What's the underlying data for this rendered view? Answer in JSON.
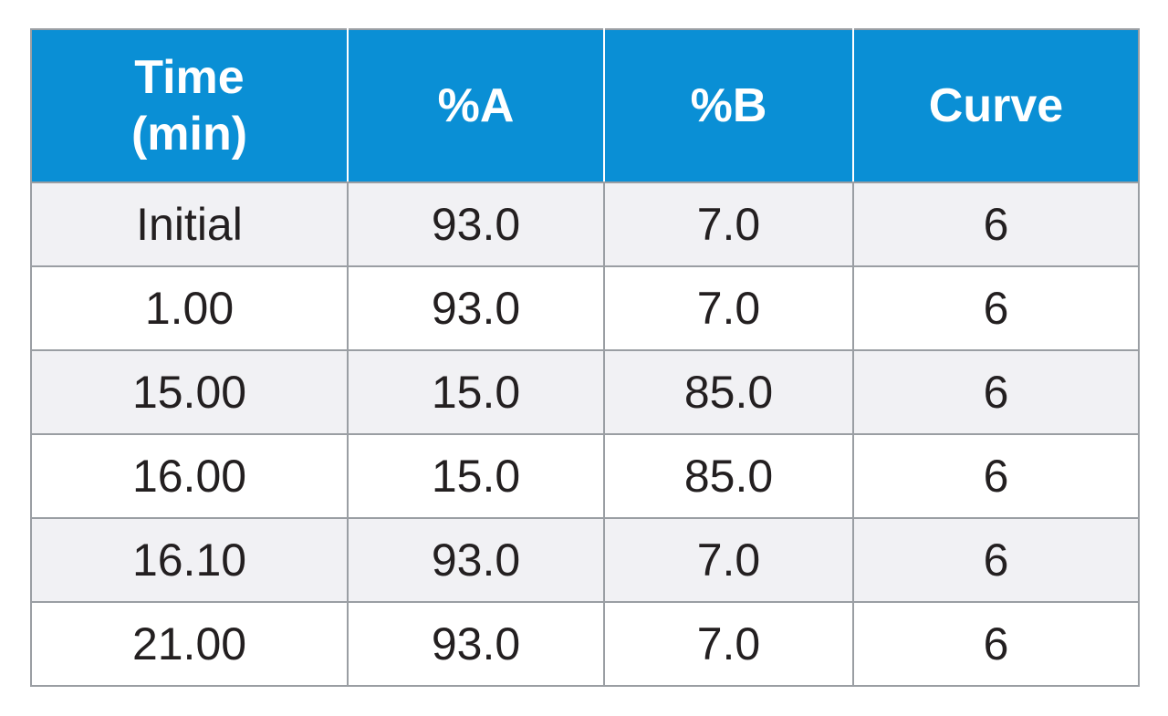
{
  "table": {
    "headers": {
      "time_line1": "Time",
      "time_line2": "(min)",
      "a": "%A",
      "b": "%B",
      "curve": "Curve"
    },
    "rows": [
      {
        "time": "Initial",
        "a": "93.0",
        "b": "7.0",
        "curve": "6"
      },
      {
        "time": "1.00",
        "a": "93.0",
        "b": "7.0",
        "curve": "6"
      },
      {
        "time": "15.00",
        "a": "15.0",
        "b": "85.0",
        "curve": "6"
      },
      {
        "time": "16.00",
        "a": "15.0",
        "b": "85.0",
        "curve": "6"
      },
      {
        "time": "16.10",
        "a": "93.0",
        "b": "7.0",
        "curve": "6"
      },
      {
        "time": "21.00",
        "a": "93.0",
        "b": "7.0",
        "curve": "6"
      }
    ]
  },
  "colors": {
    "header_bg": "#0a8fd5",
    "header_text": "#ffffff",
    "row_shade": "#f1f1f4",
    "border": "#9a9ea3",
    "body_text": "#231f20"
  }
}
